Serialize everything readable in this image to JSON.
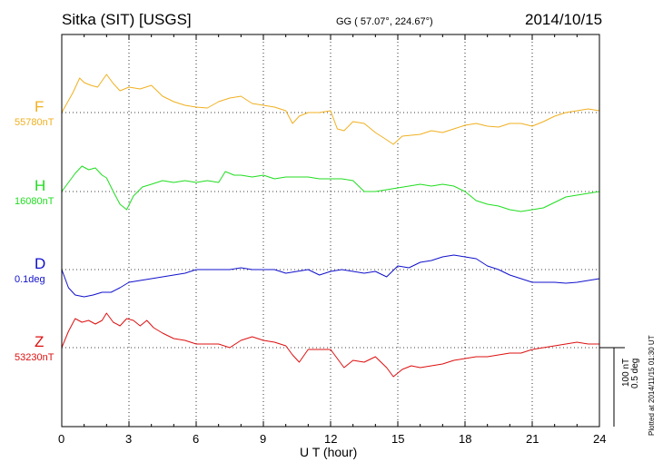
{
  "header": {
    "station": "Sitka (SIT)  [USGS]",
    "coords": "GG ( 57.07°, 224.67°)",
    "date": "2014/10/15"
  },
  "side_note": "Plotted at 2014/11/15 01:30 UT",
  "scale_bar": {
    "label_nt": "100 nT",
    "label_deg": "0.5 deg"
  },
  "chart_data": {
    "type": "line",
    "title": "Sitka (SIT)  [USGS]",
    "xlabel": "U T (hour)",
    "x_ticks": [
      "0",
      "3",
      "6",
      "9",
      "12",
      "15",
      "18",
      "21",
      "24"
    ],
    "xlim": [
      0,
      24
    ],
    "grid": true,
    "series": [
      {
        "name": "F",
        "baseline": "55780nT",
        "color": "#f0b020",
        "x": [
          0,
          0.5,
          0.8,
          1,
          1.3,
          1.6,
          2,
          2.3,
          2.6,
          3,
          3.5,
          4,
          4.5,
          5,
          5.5,
          6,
          6.5,
          7,
          7.5,
          8,
          8.5,
          9,
          9.5,
          10,
          10.3,
          10.6,
          11,
          11.5,
          12,
          12.3,
          12.6,
          13,
          13.5,
          14,
          14.5,
          14.8,
          15.2,
          15.6,
          16,
          16.5,
          17,
          17.5,
          18,
          18.5,
          19,
          19.5,
          20,
          20.5,
          21,
          21.5,
          22,
          22.5,
          23,
          23.5,
          24
        ],
        "y": [
          0,
          22,
          38,
          33,
          30,
          28,
          42,
          32,
          24,
          28,
          26,
          30,
          18,
          12,
          8,
          6,
          5,
          12,
          16,
          18,
          10,
          8,
          6,
          2,
          -12,
          -4,
          0,
          0,
          2,
          -18,
          -20,
          -10,
          -12,
          -22,
          -30,
          -35,
          -26,
          -25,
          -24,
          -20,
          -22,
          -18,
          -14,
          -12,
          -15,
          -16,
          -12,
          -12,
          -15,
          -10,
          -4,
          0,
          2,
          4,
          2
        ]
      },
      {
        "name": "H",
        "baseline": "16080nT",
        "color": "#20dd20",
        "x": [
          0,
          0.3,
          0.6,
          0.9,
          1.2,
          1.5,
          1.8,
          2,
          2.3,
          2.6,
          2.9,
          3.2,
          3.6,
          4,
          4.5,
          5,
          5.5,
          6,
          6.5,
          7,
          7.3,
          7.7,
          8,
          8.5,
          9,
          9.5,
          10,
          10.5,
          11,
          11.5,
          12,
          12.5,
          13,
          13.5,
          14,
          14.5,
          15,
          15.5,
          16,
          16.5,
          17,
          17.5,
          18,
          18.5,
          19,
          19.5,
          20,
          20.5,
          21,
          21.5,
          22,
          22.5,
          23,
          23.5,
          24
        ],
        "y": [
          0,
          10,
          20,
          28,
          24,
          26,
          18,
          15,
          0,
          -14,
          -20,
          -5,
          5,
          8,
          12,
          10,
          12,
          10,
          12,
          10,
          22,
          18,
          18,
          16,
          18,
          14,
          16,
          16,
          16,
          14,
          14,
          14,
          12,
          0,
          0,
          2,
          4,
          6,
          8,
          6,
          8,
          6,
          0,
          -10,
          -14,
          -16,
          -20,
          -22,
          -20,
          -18,
          -12,
          -6,
          -4,
          -2,
          0
        ]
      },
      {
        "name": "D",
        "baseline": "0.1deg",
        "color": "#1010cc",
        "x": [
          0,
          0.3,
          0.6,
          1,
          1.4,
          1.8,
          2.2,
          2.6,
          3,
          3.5,
          4,
          4.5,
          5,
          5.5,
          6,
          6.5,
          7,
          7.5,
          8,
          8.5,
          9,
          9.5,
          10,
          10.5,
          11,
          11.5,
          12,
          12.5,
          13,
          13.5,
          14,
          14.5,
          15,
          15.5,
          16,
          16.5,
          17,
          17.5,
          18,
          18.5,
          19,
          19.5,
          20,
          20.5,
          21,
          21.5,
          22,
          22.5,
          23,
          23.5,
          24
        ],
        "y": [
          0,
          -20,
          -28,
          -30,
          -28,
          -25,
          -25,
          -20,
          -14,
          -12,
          -10,
          -8,
          -6,
          -4,
          0,
          0,
          0,
          0,
          2,
          0,
          0,
          0,
          -4,
          -2,
          0,
          -6,
          -2,
          0,
          -2,
          -4,
          -2,
          -8,
          4,
          2,
          8,
          10,
          14,
          16,
          14,
          12,
          4,
          0,
          -6,
          -10,
          -14,
          -14,
          -14,
          -15,
          -14,
          -12,
          -10
        ]
      },
      {
        "name": "Z",
        "baseline": "53230nT",
        "color": "#dd1010",
        "x": [
          0,
          0.3,
          0.6,
          0.9,
          1.2,
          1.5,
          1.8,
          2,
          2.3,
          2.6,
          2.9,
          3.2,
          3.5,
          3.8,
          4.1,
          4.5,
          5,
          5.5,
          6,
          6.5,
          7,
          7.5,
          8,
          8.5,
          9,
          9.5,
          10,
          10.3,
          10.6,
          11,
          11.5,
          12,
          12.3,
          12.6,
          13,
          13.5,
          14,
          14.5,
          14.8,
          15.2,
          15.6,
          16,
          16.5,
          17,
          17.5,
          18,
          18.5,
          19,
          19.5,
          20,
          20.5,
          21,
          21.5,
          22,
          22.5,
          23,
          23.5,
          24
        ],
        "y": [
          0,
          18,
          32,
          28,
          30,
          26,
          30,
          38,
          28,
          24,
          32,
          30,
          24,
          30,
          22,
          16,
          10,
          8,
          4,
          4,
          4,
          0,
          8,
          12,
          8,
          6,
          2,
          -8,
          -16,
          -2,
          -2,
          -2,
          -12,
          -22,
          -14,
          -16,
          -10,
          -22,
          -32,
          -24,
          -20,
          -22,
          -20,
          -18,
          -14,
          -12,
          -10,
          -10,
          -8,
          -6,
          -6,
          -2,
          0,
          2,
          4,
          6,
          4,
          4
        ]
      }
    ]
  }
}
